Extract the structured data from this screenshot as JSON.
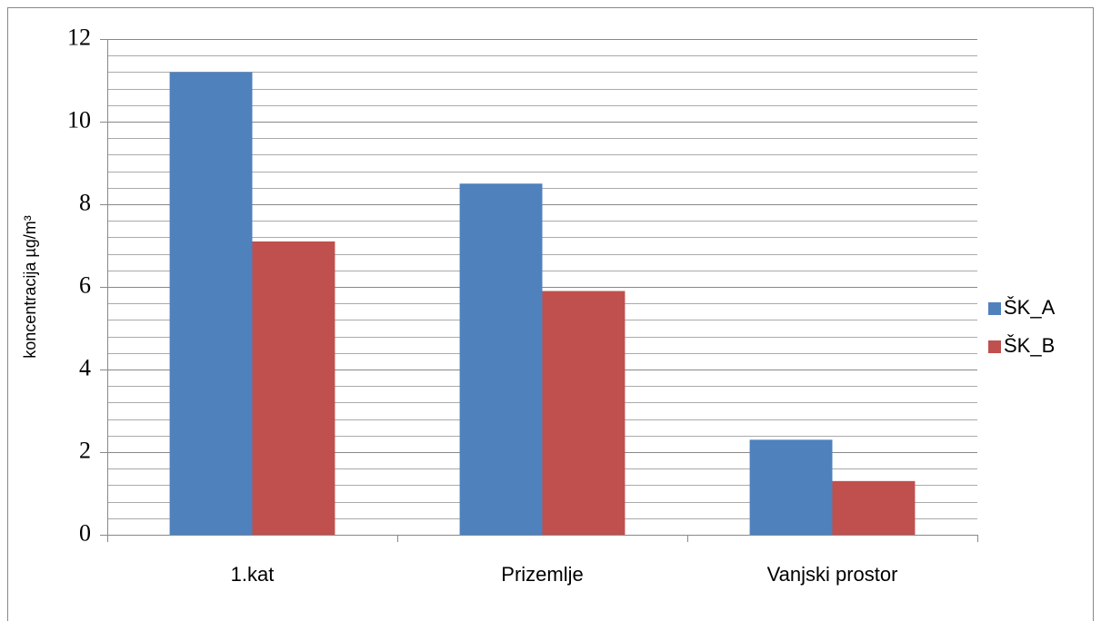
{
  "chart_data": {
    "type": "bar",
    "y_label": "koncentracija µg/m³",
    "categories": [
      "1.kat",
      "Prizemlje",
      "Vanjski prostor"
    ],
    "series": [
      {
        "name": "ŠK_A",
        "color": "#4f81bd",
        "values": [
          11.2,
          8.5,
          2.3
        ]
      },
      {
        "name": "ŠK_B",
        "color": "#c0504d",
        "values": [
          7.1,
          5.9,
          1.3
        ]
      }
    ],
    "ylim": [
      0,
      12
    ],
    "yticks": [
      0,
      2,
      4,
      6,
      8,
      10,
      12
    ],
    "yticks_minor": [
      0.4,
      0.8,
      1.2,
      1.6,
      2.4,
      2.8,
      3.2,
      3.6,
      4.4,
      4.8,
      5.2,
      5.6,
      6.4,
      6.8,
      7.2,
      7.6,
      8.4,
      8.8,
      9.2,
      9.6,
      10.4,
      10.8,
      11.2,
      11.6
    ],
    "grid": true,
    "legend": "right"
  }
}
